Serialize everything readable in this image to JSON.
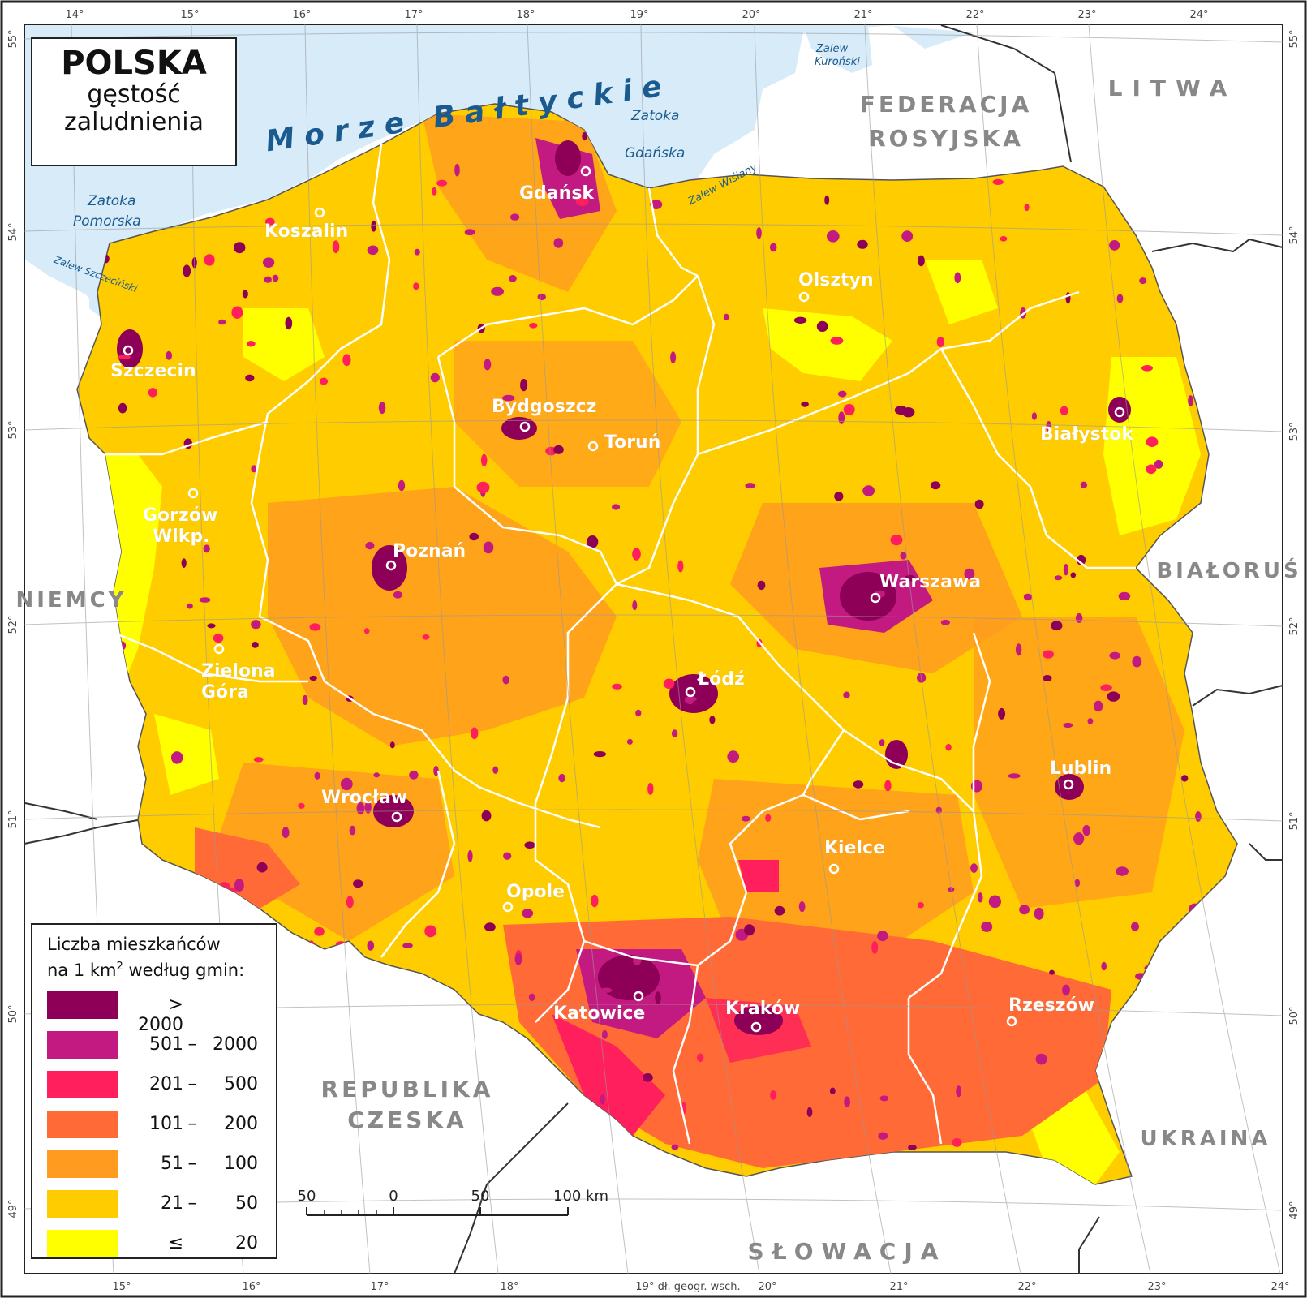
{
  "title": {
    "main": "POLSKA",
    "line2": "gęstość",
    "line3": "zaludnienia"
  },
  "seas": [
    {
      "id": "baltic",
      "label": "Morze Bałtyckie"
    },
    {
      "id": "zatoka-pomorska-1",
      "label": "Zatoka"
    },
    {
      "id": "zatoka-pomorska-2",
      "label": "Pomorska"
    },
    {
      "id": "zatoka-gdanska-1",
      "label": "Zatoka"
    },
    {
      "id": "zatoka-gdanska-2",
      "label": "Gdańska"
    },
    {
      "id": "zalew-wislany",
      "label": "Zalew Wiślany"
    },
    {
      "id": "zalew-kuronski-1",
      "label": "Zalew"
    },
    {
      "id": "zalew-kuronski-2",
      "label": "Kuroński"
    },
    {
      "id": "zalew-szczecinski",
      "label": "Zalew Szczeciński"
    }
  ],
  "countries": [
    {
      "id": "federacja-1",
      "label": "FEDERACJA"
    },
    {
      "id": "federacja-2",
      "label": "ROSYJSKA"
    },
    {
      "id": "litwa",
      "label": "LITWA"
    },
    {
      "id": "bialorus",
      "label": "BIAŁORUŚ"
    },
    {
      "id": "niemcy",
      "label": "NIEMCY"
    },
    {
      "id": "ukraina",
      "label": "UKRAINA"
    },
    {
      "id": "republika",
      "label": "REPUBLIKA"
    },
    {
      "id": "czeska",
      "label": "CZESKA"
    },
    {
      "id": "slowacja",
      "label": "SŁOWACJA"
    }
  ],
  "cities": [
    {
      "name": "Gdańsk"
    },
    {
      "name": "Koszalin"
    },
    {
      "name": "Olsztyn"
    },
    {
      "name": "Szczecin"
    },
    {
      "name": "Bydgoszcz"
    },
    {
      "name": "Toruń"
    },
    {
      "name": "Białystok"
    },
    {
      "name": "Gorzów"
    },
    {
      "name": "Wlkp."
    },
    {
      "name": "Poznań"
    },
    {
      "name": "Warszawa"
    },
    {
      "name": "Zielona"
    },
    {
      "name": "Góra"
    },
    {
      "name": "Łódź"
    },
    {
      "name": "Lublin"
    },
    {
      "name": "Wrocław"
    },
    {
      "name": "Kielce"
    },
    {
      "name": "Opole"
    },
    {
      "name": "Katowice"
    },
    {
      "name": "Kraków"
    },
    {
      "name": "Rzeszów"
    }
  ],
  "graticule": {
    "top_lon": [
      "14°",
      "15°",
      "16°",
      "17°",
      "18°",
      "19°",
      "20°",
      "21°",
      "22°",
      "23°",
      "24°"
    ],
    "bottom_lon": [
      "15°",
      "16°",
      "17°",
      "18°",
      "19° dł. geogr. wsch.",
      "20°",
      "21°",
      "22°",
      "23°",
      "24°"
    ],
    "lat": [
      "55°",
      "54°",
      "53°",
      "52°",
      "51°",
      "50°",
      "49°"
    ]
  },
  "legend": {
    "line1": "Liczba mieszkańców",
    "line2_pre": "na 1 km",
    "line2_sup": "2",
    "line2_post": " według gmin:",
    "classes": [
      {
        "color": "#8e0057",
        "lo": "> 2000",
        "dash": "",
        "hi": ""
      },
      {
        "color": "#c21a80",
        "lo": "501",
        "dash": "–",
        "hi": "2000"
      },
      {
        "color": "#ff1f5c",
        "lo": "201",
        "dash": "–",
        "hi": "500"
      },
      {
        "color": "#ff6a36",
        "lo": "101",
        "dash": "–",
        "hi": "200"
      },
      {
        "color": "#ff9b1f",
        "lo": "51",
        "dash": "–",
        "hi": "100"
      },
      {
        "color": "#ffcc00",
        "lo": "21",
        "dash": "–",
        "hi": "50"
      },
      {
        "color": "#ffff00",
        "lo": "≤",
        "dash": "",
        "hi": "20"
      }
    ]
  },
  "scale": {
    "labels": [
      "50",
      "0",
      "50",
      "100 km"
    ]
  }
}
